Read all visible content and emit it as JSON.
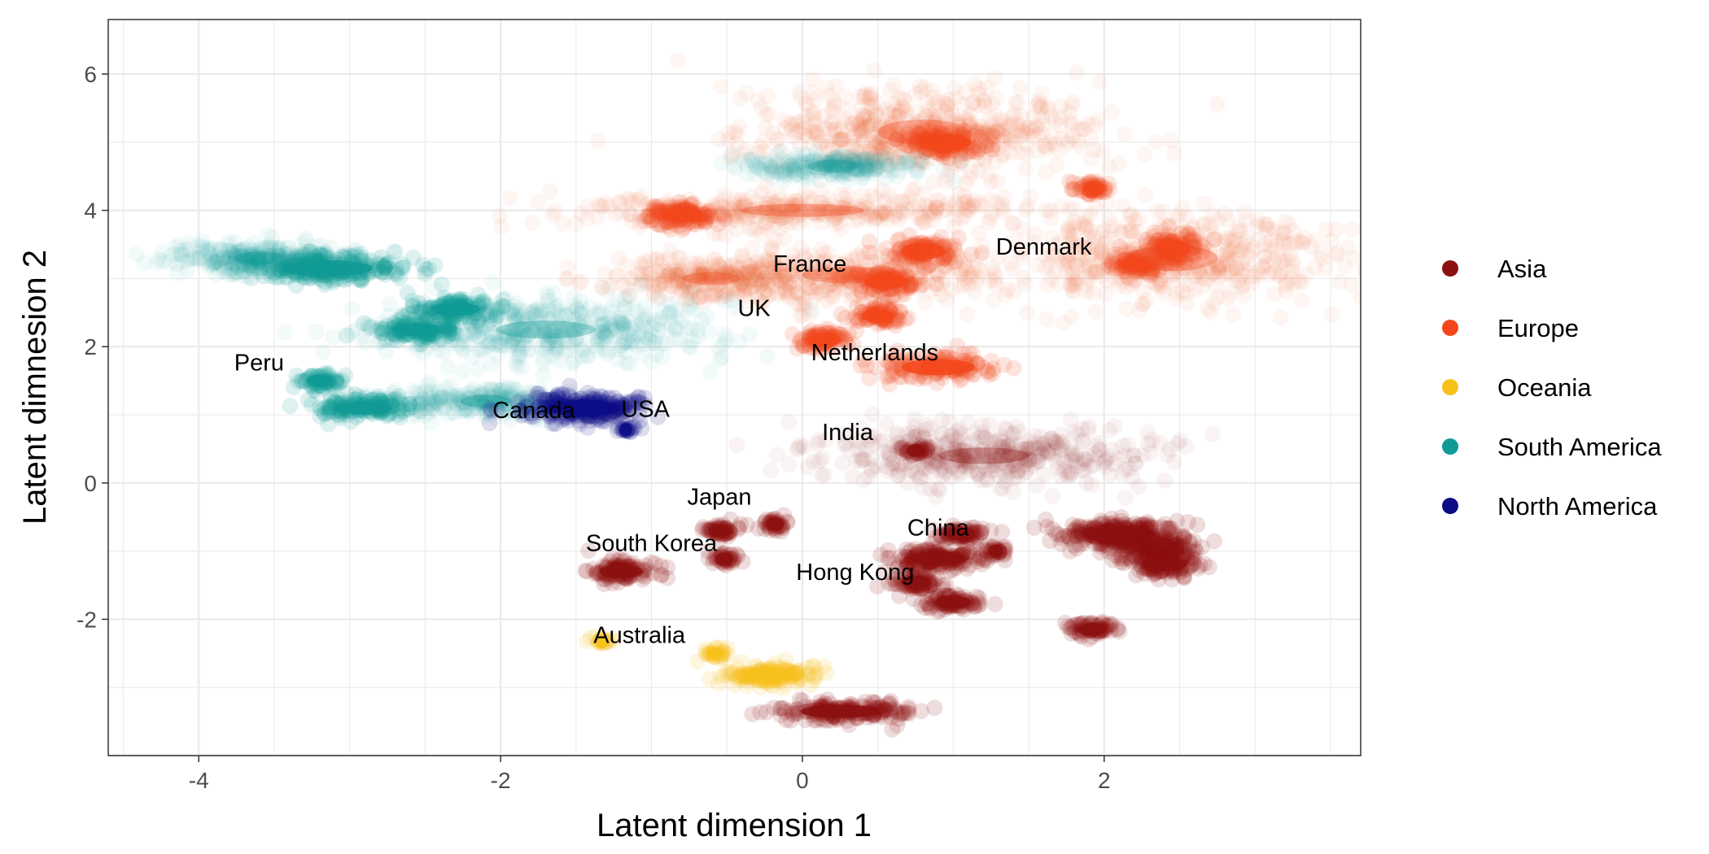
{
  "chart_data": {
    "type": "scatter",
    "xlabel": "Latent dimension 1",
    "ylabel": "Latent dimnesion 2",
    "xlim": [
      -4.6,
      3.7
    ],
    "ylim": [
      -4.0,
      6.8
    ],
    "x_ticks": [
      -4,
      -2,
      0,
      2
    ],
    "y_ticks": [
      -2,
      0,
      2,
      4,
      6
    ],
    "grid": true,
    "legend_position": "right",
    "legend": [
      {
        "name": "Asia",
        "color": "#8B1111"
      },
      {
        "name": "Europe",
        "color": "#F4461B"
      },
      {
        "name": "Oceania",
        "color": "#F7C11B"
      },
      {
        "name": "South America",
        "color": "#0F9A96"
      },
      {
        "name": "North America",
        "color": "#0C0C86"
      }
    ],
    "clusters": [
      {
        "region": "Europe",
        "x": 0.8,
        "y": 5.15,
        "sx": 0.55,
        "sy": 0.33,
        "n": 550
      },
      {
        "region": "Europe",
        "x": 0.95,
        "y": 5.0,
        "sx": 0.14,
        "sy": 0.1,
        "n": 160
      },
      {
        "region": "Europe",
        "x": 0.0,
        "y": 4.0,
        "sx": 0.75,
        "sy": 0.12,
        "n": 380
      },
      {
        "region": "Europe",
        "x": -0.8,
        "y": 3.93,
        "sx": 0.12,
        "sy": 0.09,
        "n": 130
      },
      {
        "region": "Europe",
        "x": -0.6,
        "y": 3.0,
        "sx": 0.35,
        "sy": 0.14,
        "n": 280
      },
      {
        "region": "Europe",
        "x": 0.3,
        "y": 3.05,
        "sx": 0.55,
        "sy": 0.22,
        "n": 330
      },
      {
        "region": "Europe",
        "x": 0.8,
        "y": 3.4,
        "sx": 0.12,
        "sy": 0.1,
        "n": 120
      },
      {
        "region": "Europe",
        "x": 0.55,
        "y": 2.95,
        "sx": 0.12,
        "sy": 0.09,
        "n": 110
      },
      {
        "region": "Europe",
        "x": 0.5,
        "y": 2.45,
        "sx": 0.09,
        "sy": 0.07,
        "n": 90
      },
      {
        "region": "Europe",
        "x": 0.15,
        "y": 2.1,
        "sx": 0.09,
        "sy": 0.07,
        "n": 90
      },
      {
        "region": "Europe",
        "x": 0.9,
        "y": 1.7,
        "sx": 0.2,
        "sy": 0.1,
        "n": 140
      },
      {
        "region": "Europe",
        "x": 1.93,
        "y": 4.32,
        "sx": 0.06,
        "sy": 0.05,
        "n": 60
      },
      {
        "region": "Europe",
        "x": 2.45,
        "y": 3.3,
        "sx": 0.55,
        "sy": 0.35,
        "n": 480
      },
      {
        "region": "Europe",
        "x": 2.45,
        "y": 3.45,
        "sx": 0.1,
        "sy": 0.1,
        "n": 120
      },
      {
        "region": "Europe",
        "x": 2.2,
        "y": 3.2,
        "sx": 0.09,
        "sy": 0.08,
        "n": 90
      },
      {
        "region": "South America",
        "x": 0.2,
        "y": 4.65,
        "sx": 0.3,
        "sy": 0.08,
        "n": 260
      },
      {
        "region": "South America",
        "x": -3.6,
        "y": 3.3,
        "sx": 0.3,
        "sy": 0.12,
        "n": 320
      },
      {
        "region": "South America",
        "x": -3.15,
        "y": 3.15,
        "sx": 0.25,
        "sy": 0.1,
        "n": 250
      },
      {
        "region": "South America",
        "x": -1.7,
        "y": 2.25,
        "sx": 0.6,
        "sy": 0.24,
        "n": 480
      },
      {
        "region": "South America",
        "x": -2.3,
        "y": 2.55,
        "sx": 0.14,
        "sy": 0.08,
        "n": 130
      },
      {
        "region": "South America",
        "x": -2.55,
        "y": 2.25,
        "sx": 0.14,
        "sy": 0.08,
        "n": 130
      },
      {
        "region": "South America",
        "x": -2.1,
        "y": 1.2,
        "sx": 0.3,
        "sy": 0.12,
        "n": 260
      },
      {
        "region": "South America",
        "x": -2.9,
        "y": 1.1,
        "sx": 0.15,
        "sy": 0.08,
        "n": 160
      },
      {
        "region": "South America",
        "x": -3.2,
        "y": 1.5,
        "sx": 0.07,
        "sy": 0.06,
        "n": 60
      },
      {
        "region": "North America",
        "x": -1.45,
        "y": 1.1,
        "sx": 0.2,
        "sy": 0.1,
        "n": 280
      },
      {
        "region": "North America",
        "x": -1.17,
        "y": 0.78,
        "sx": 0.03,
        "sy": 0.03,
        "n": 20
      },
      {
        "region": "Asia",
        "x": 1.2,
        "y": 0.4,
        "sx": 0.55,
        "sy": 0.22,
        "n": 460
      },
      {
        "region": "Asia",
        "x": 0.75,
        "y": 0.48,
        "sx": 0.05,
        "sy": 0.04,
        "n": 30
      },
      {
        "region": "Asia",
        "x": 2.1,
        "y": -0.75,
        "sx": 0.2,
        "sy": 0.1,
        "n": 280
      },
      {
        "region": "Asia",
        "x": 2.35,
        "y": -0.95,
        "sx": 0.12,
        "sy": 0.1,
        "n": 180
      },
      {
        "region": "Asia",
        "x": 2.4,
        "y": -1.2,
        "sx": 0.12,
        "sy": 0.08,
        "n": 140
      },
      {
        "region": "Asia",
        "x": 1.92,
        "y": -2.15,
        "sx": 0.08,
        "sy": 0.05,
        "n": 70
      },
      {
        "region": "Asia",
        "x": 0.9,
        "y": -1.1,
        "sx": 0.15,
        "sy": 0.08,
        "n": 180
      },
      {
        "region": "Asia",
        "x": 1.05,
        "y": -0.75,
        "sx": 0.08,
        "sy": 0.05,
        "n": 80
      },
      {
        "region": "Asia",
        "x": 1.28,
        "y": -1.0,
        "sx": 0.04,
        "sy": 0.04,
        "n": 30
      },
      {
        "region": "Asia",
        "x": 0.75,
        "y": -1.45,
        "sx": 0.08,
        "sy": 0.06,
        "n": 80
      },
      {
        "region": "Asia",
        "x": 1.0,
        "y": -1.75,
        "sx": 0.1,
        "sy": 0.06,
        "n": 90
      },
      {
        "region": "Asia",
        "x": 0.25,
        "y": -3.35,
        "sx": 0.22,
        "sy": 0.07,
        "n": 190
      },
      {
        "region": "Asia",
        "x": -0.55,
        "y": -0.7,
        "sx": 0.06,
        "sy": 0.05,
        "n": 60
      },
      {
        "region": "Asia",
        "x": -0.18,
        "y": -0.6,
        "sx": 0.05,
        "sy": 0.05,
        "n": 40
      },
      {
        "region": "Asia",
        "x": -0.52,
        "y": -1.12,
        "sx": 0.05,
        "sy": 0.05,
        "n": 40
      },
      {
        "region": "Asia",
        "x": -1.2,
        "y": -1.3,
        "sx": 0.12,
        "sy": 0.08,
        "n": 120
      },
      {
        "region": "Oceania",
        "x": -0.22,
        "y": -2.82,
        "sx": 0.15,
        "sy": 0.07,
        "n": 170
      },
      {
        "region": "Oceania",
        "x": -0.58,
        "y": -2.5,
        "sx": 0.05,
        "sy": 0.04,
        "n": 30
      },
      {
        "region": "Oceania",
        "x": -1.33,
        "y": -2.33,
        "sx": 0.04,
        "sy": 0.04,
        "n": 20
      }
    ],
    "annotations": [
      {
        "text": "France",
        "x": 0.05,
        "y": 3.1,
        "anchor": "middle"
      },
      {
        "text": "Denmark",
        "x": 1.6,
        "y": 3.35,
        "anchor": "middle"
      },
      {
        "text": "UK",
        "x": -0.32,
        "y": 2.45,
        "anchor": "middle"
      },
      {
        "text": "Netherlands",
        "x": 0.48,
        "y": 1.8,
        "anchor": "middle"
      },
      {
        "text": "Peru",
        "x": -3.6,
        "y": 1.65,
        "anchor": "middle"
      },
      {
        "text": "Canada",
        "x": -1.78,
        "y": 0.95,
        "anchor": "middle"
      },
      {
        "text": "USA",
        "x": -1.04,
        "y": 0.97,
        "anchor": "middle"
      },
      {
        "text": "India",
        "x": 0.3,
        "y": 0.63,
        "anchor": "middle"
      },
      {
        "text": "Japan",
        "x": -0.55,
        "y": -0.32,
        "anchor": "middle"
      },
      {
        "text": "China",
        "x": 0.9,
        "y": -0.77,
        "anchor": "middle"
      },
      {
        "text": "South Korea",
        "x": -1.0,
        "y": -1.0,
        "anchor": "middle"
      },
      {
        "text": "Hong Kong",
        "x": 0.35,
        "y": -1.42,
        "anchor": "middle"
      },
      {
        "text": "Australia",
        "x": -1.08,
        "y": -2.35,
        "anchor": "middle"
      }
    ]
  }
}
